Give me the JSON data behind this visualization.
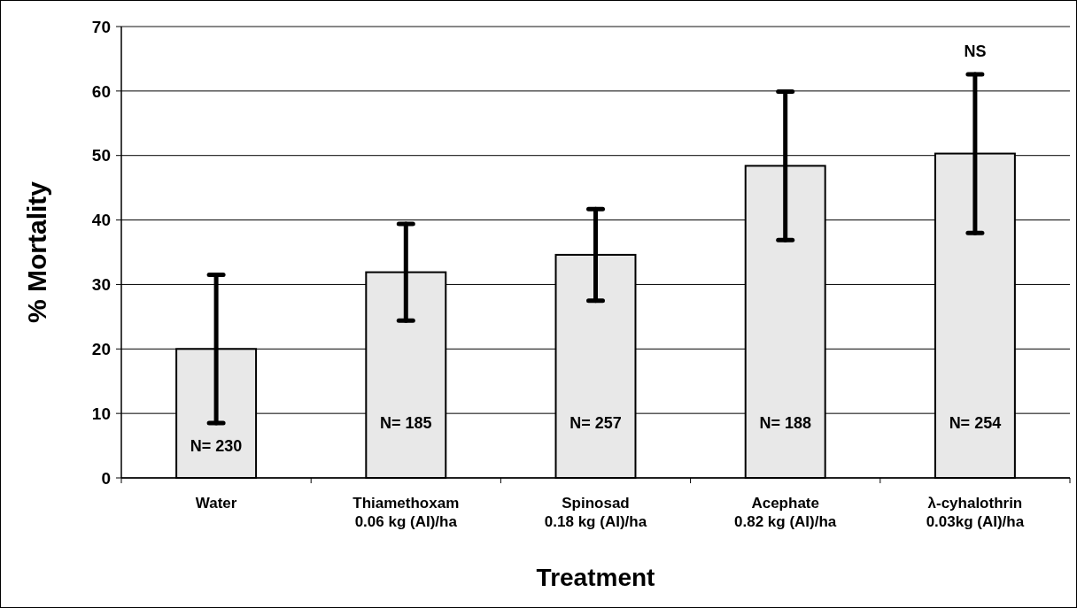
{
  "chart_data": {
    "type": "bar",
    "xlabel": "Treatment",
    "ylabel": "% Mortality",
    "categories": [
      "Water",
      "Thiamethoxam\n0.06 kg (AI)/ha",
      "Spinosad\n0.18 kg (AI)/ha",
      "Acephate\n0.82 kg (AI)/ha",
      "λ-cyhalothrin\n0.03kg (AI)/ha"
    ],
    "values": [
      20.0,
      31.9,
      34.6,
      48.4,
      50.3
    ],
    "errors": [
      11.5,
      7.5,
      7.1,
      11.5,
      12.3
    ],
    "color": "#e8e8e8",
    "ylim": [
      0,
      70
    ],
    "yticks": [
      0,
      10,
      20,
      30,
      40,
      50,
      60,
      70
    ],
    "grid": "y",
    "annotations": [
      "N= 230",
      "N= 185",
      "N= 257",
      "N= 188",
      "N= 254",
      "NS"
    ]
  }
}
